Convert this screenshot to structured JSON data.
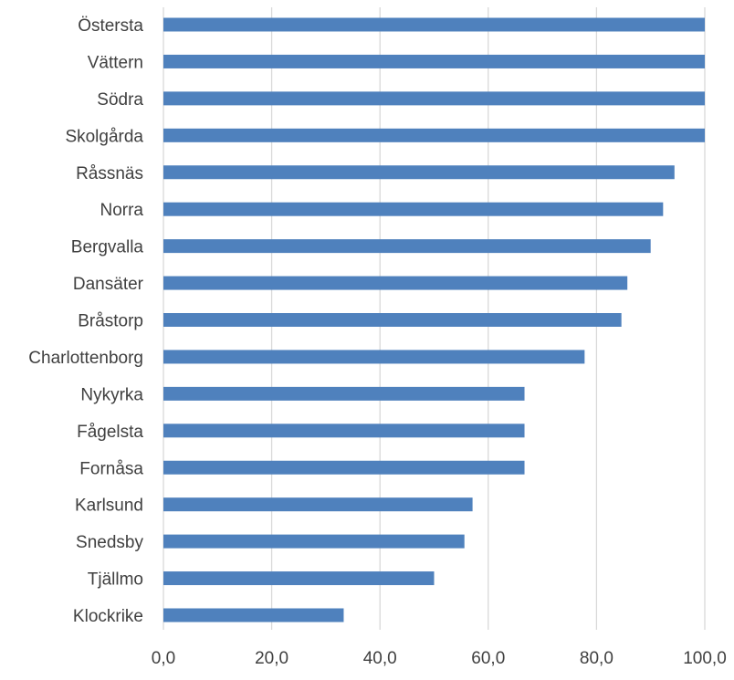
{
  "chart_data": {
    "type": "bar",
    "orientation": "horizontal",
    "categories": [
      "Östersta",
      "Vättern",
      "Södra",
      "Skolgårda",
      "Råssnäs",
      "Norra",
      "Bergvalla",
      "Dansäter",
      "Bråstorp",
      "Charlottenborg",
      "Nykyrka",
      "Fågelsta",
      "Fornåsa",
      "Karlsund",
      "Snedsby",
      "Tjällmo",
      "Klockrike"
    ],
    "values": [
      100.0,
      100.0,
      100.0,
      100.0,
      94.4,
      92.3,
      90.0,
      85.7,
      84.6,
      77.8,
      66.7,
      66.7,
      66.7,
      57.1,
      55.6,
      50.0,
      33.3
    ],
    "xlim": [
      0,
      100
    ],
    "xticks": [
      0,
      20,
      40,
      60,
      80,
      100
    ],
    "xtick_labels": [
      "0,0",
      "20,0",
      "40,0",
      "60,0",
      "80,0",
      "100,0"
    ],
    "grid": true,
    "legend": "none",
    "title": "",
    "xlabel": "",
    "ylabel": "",
    "bar_color": "#4f81bd"
  }
}
